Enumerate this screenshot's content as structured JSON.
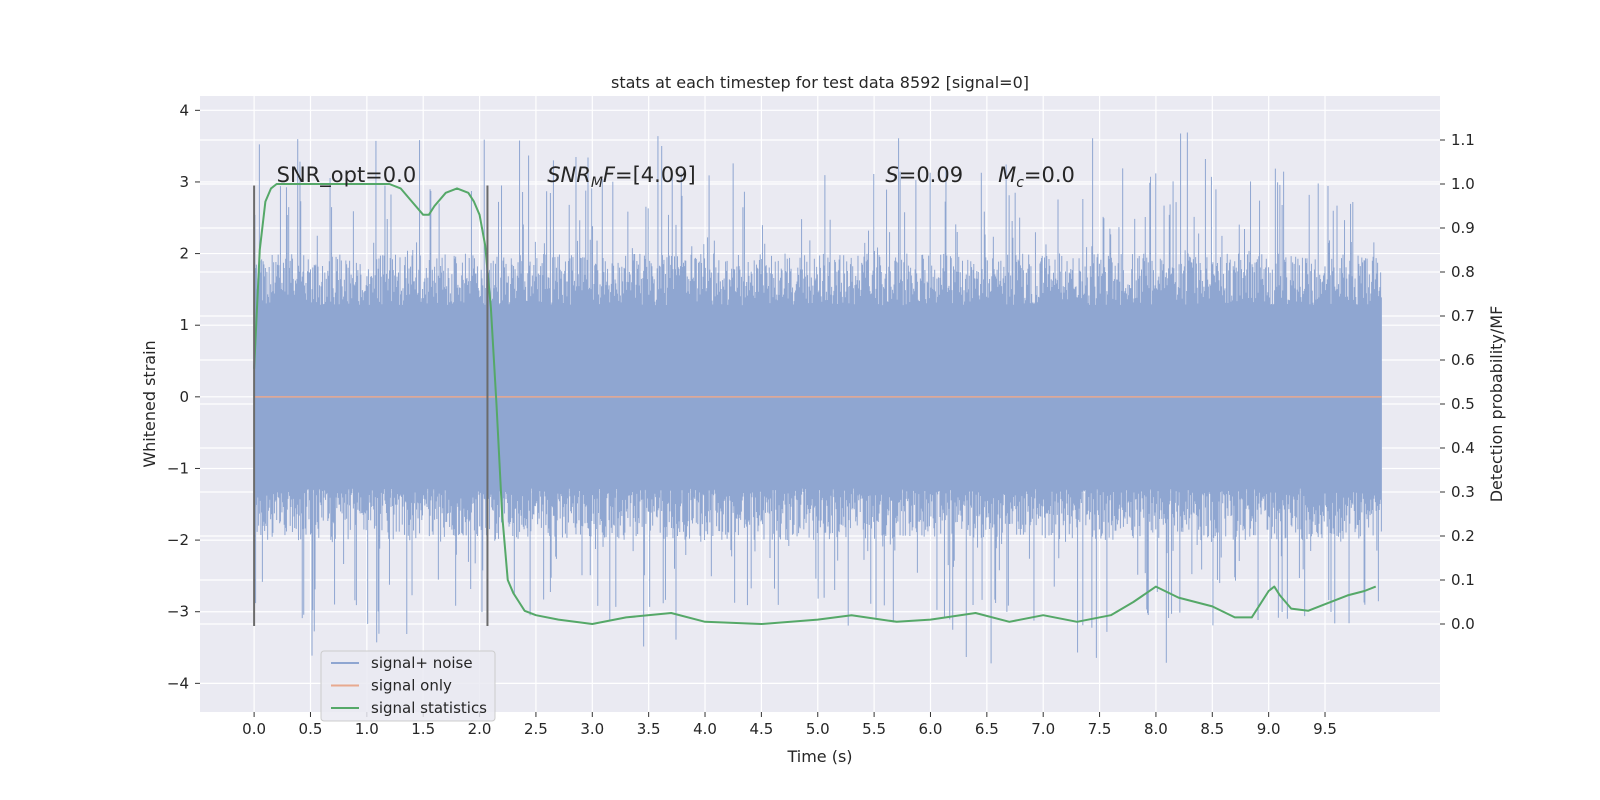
{
  "chart_data": {
    "type": "line",
    "title": "stats at each timestep for test data 8592 [signal=0]",
    "xlabel": "Time (s)",
    "ylabel_left": "Whitened strain",
    "ylabel_right": "Detection probability/MF",
    "xlim": [
      -0.48,
      10.52
    ],
    "ylim_left": [
      -4.4,
      4.2
    ],
    "ylim_right": [
      -0.2,
      1.2
    ],
    "x_ticks": [
      0.0,
      0.5,
      1.0,
      1.5,
      2.0,
      2.5,
      3.0,
      3.5,
      4.0,
      4.5,
      5.0,
      5.5,
      6.0,
      6.5,
      7.0,
      7.5,
      8.0,
      8.5,
      9.0,
      9.5
    ],
    "x_tick_labels": [
      "0.0",
      "0.5",
      "1.0",
      "1.5",
      "2.0",
      "2.5",
      "3.0",
      "3.5",
      "4.0",
      "4.5",
      "5.0",
      "5.5",
      "6.0",
      "6.5",
      "7.0",
      "7.5",
      "8.0",
      "8.5",
      "9.0",
      "9.5"
    ],
    "y_left_ticks": [
      -4,
      -3,
      -2,
      -1,
      0,
      1,
      2,
      3,
      4
    ],
    "y_left_tick_labels": [
      "−4",
      "−3",
      "−2",
      "−1",
      "0",
      "1",
      "2",
      "3",
      "4"
    ],
    "y_right_ticks": [
      0.0,
      0.1,
      0.2,
      0.3,
      0.4,
      0.5,
      0.6,
      0.7,
      0.8,
      0.9,
      1.0,
      1.1
    ],
    "y_right_tick_labels": [
      "0.0",
      "0.1",
      "0.2",
      "0.3",
      "0.4",
      "0.5",
      "0.6",
      "0.7",
      "0.8",
      "0.9",
      "1.0",
      "1.1"
    ],
    "grid": true,
    "legend_position": "lower-left",
    "noise_band": {
      "time_start": 0.0,
      "time_end": 10.0,
      "core_amplitude": 1.6,
      "peak_amplitude": 3.8
    },
    "series": [
      {
        "name": "signal+ noise",
        "axis": "left",
        "color": "#8fa6d1",
        "x": [
          0.0,
          10.0
        ],
        "y": [
          0.0,
          0.0
        ]
      },
      {
        "name": "signal only",
        "axis": "left",
        "color": "#e8a98f",
        "x": [
          0.0,
          10.0
        ],
        "y": [
          0.0,
          0.0
        ]
      },
      {
        "name": "signal statistics",
        "axis": "right",
        "color": "#55a868",
        "x": [
          0.0,
          0.05,
          0.1,
          0.15,
          0.2,
          0.3,
          0.5,
          0.8,
          1.0,
          1.2,
          1.3,
          1.4,
          1.5,
          1.55,
          1.6,
          1.7,
          1.8,
          1.9,
          1.95,
          2.0,
          2.05,
          2.1,
          2.15,
          2.2,
          2.25,
          2.3,
          2.35,
          2.4,
          2.5,
          2.7,
          3.0,
          3.3,
          3.7,
          4.0,
          4.5,
          5.0,
          5.3,
          5.7,
          6.0,
          6.4,
          6.7,
          7.0,
          7.3,
          7.6,
          7.8,
          8.0,
          8.2,
          8.5,
          8.7,
          8.85,
          9.0,
          9.05,
          9.1,
          9.2,
          9.35,
          9.5,
          9.7,
          9.85,
          9.95
        ],
        "y": [
          0.58,
          0.85,
          0.96,
          0.99,
          1.0,
          1.0,
          1.0,
          1.0,
          1.0,
          1.0,
          0.99,
          0.96,
          0.93,
          0.93,
          0.95,
          0.98,
          0.99,
          0.98,
          0.96,
          0.93,
          0.86,
          0.72,
          0.5,
          0.25,
          0.1,
          0.07,
          0.05,
          0.03,
          0.02,
          0.01,
          0.0,
          0.015,
          0.025,
          0.005,
          0.0,
          0.01,
          0.02,
          0.005,
          0.01,
          0.025,
          0.005,
          0.02,
          0.005,
          0.02,
          0.05,
          0.085,
          0.06,
          0.04,
          0.015,
          0.015,
          0.075,
          0.085,
          0.065,
          0.035,
          0.03,
          0.045,
          0.065,
          0.075,
          0.085
        ]
      }
    ],
    "vertical_markers": [
      {
        "x": 0.0,
        "y_range": [
          -3.2,
          2.95
        ]
      },
      {
        "x": 2.07,
        "y_range": [
          -3.2,
          2.95
        ]
      }
    ],
    "annotations": [
      {
        "text_parts": [
          {
            "t": "SNR_opt=0.0",
            "style": "normal"
          }
        ],
        "x": 0.2,
        "y": 3.0
      },
      {
        "text_parts": [
          {
            "t": "SNR",
            "style": "italic"
          },
          {
            "t": "M",
            "style": "italic-sub"
          },
          {
            "t": "F",
            "style": "italic"
          },
          {
            "t": "=[4.09]",
            "style": "normal"
          }
        ],
        "x": 2.6,
        "y": 3.0
      },
      {
        "text_parts": [
          {
            "t": "S",
            "style": "italic"
          },
          {
            "t": "=0.09",
            "style": "normal"
          }
        ],
        "x": 5.6,
        "y": 3.0
      },
      {
        "text_parts": [
          {
            "t": "M",
            "style": "italic"
          },
          {
            "t": "c",
            "style": "italic-sub"
          },
          {
            "t": "=0.0",
            "style": "normal"
          }
        ],
        "x": 6.6,
        "y": 3.0
      }
    ]
  }
}
